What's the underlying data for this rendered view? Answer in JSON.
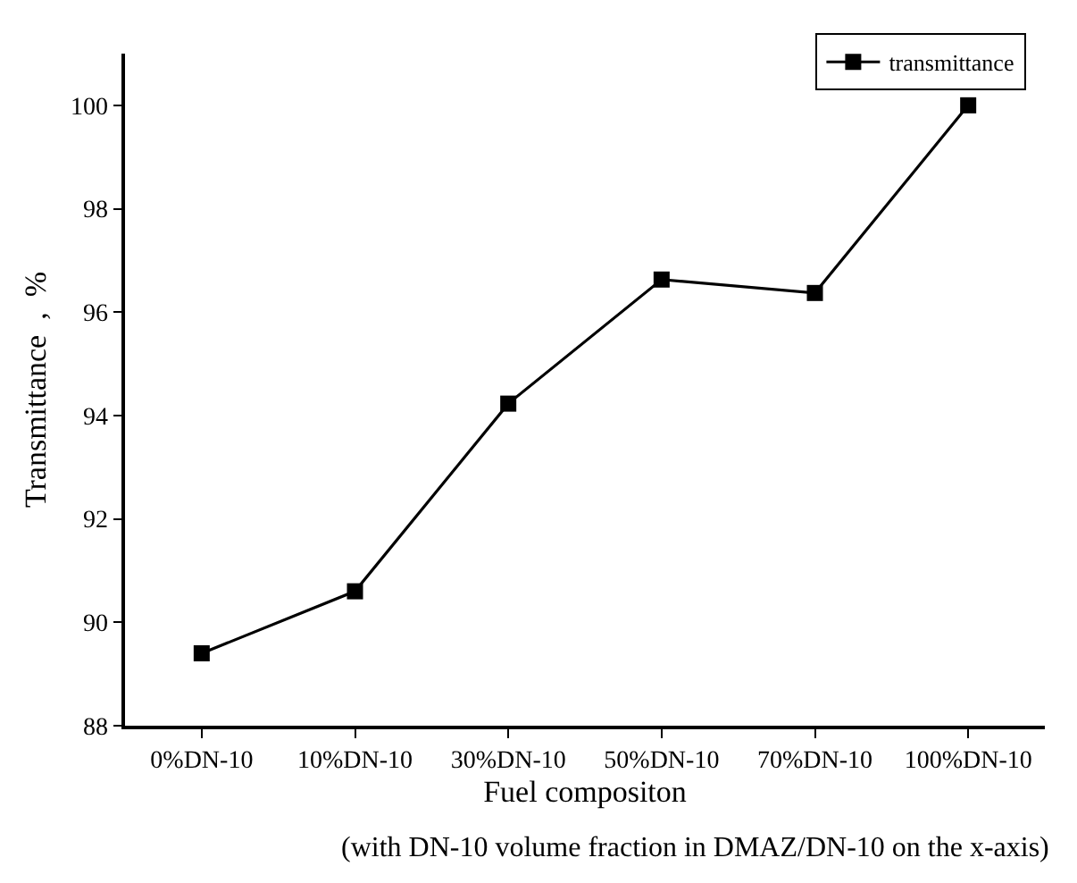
{
  "chart_data": {
    "type": "line",
    "xlabel": "Fuel compositon",
    "ylabel": "Transmittance  ,  %",
    "categories": [
      "0%DN-10",
      "10%DN-10",
      "30%DN-10",
      "50%DN-10",
      "70%DN-10",
      "100%DN-10"
    ],
    "series": [
      {
        "name": "transmittance",
        "color": "#000000",
        "values": [
          89.4,
          90.6,
          94.23,
          96.63,
          96.37,
          100.0
        ]
      }
    ],
    "ylim": [
      88,
      101
    ],
    "yticks": [
      88,
      90,
      92,
      94,
      96,
      98,
      100
    ],
    "marker": "square",
    "line_style": "solid",
    "grid": false,
    "legend": "top right",
    "annotations": [
      "(with DN-10 volume fraction in DMAZ/DN-10 on the x-axis)"
    ]
  }
}
